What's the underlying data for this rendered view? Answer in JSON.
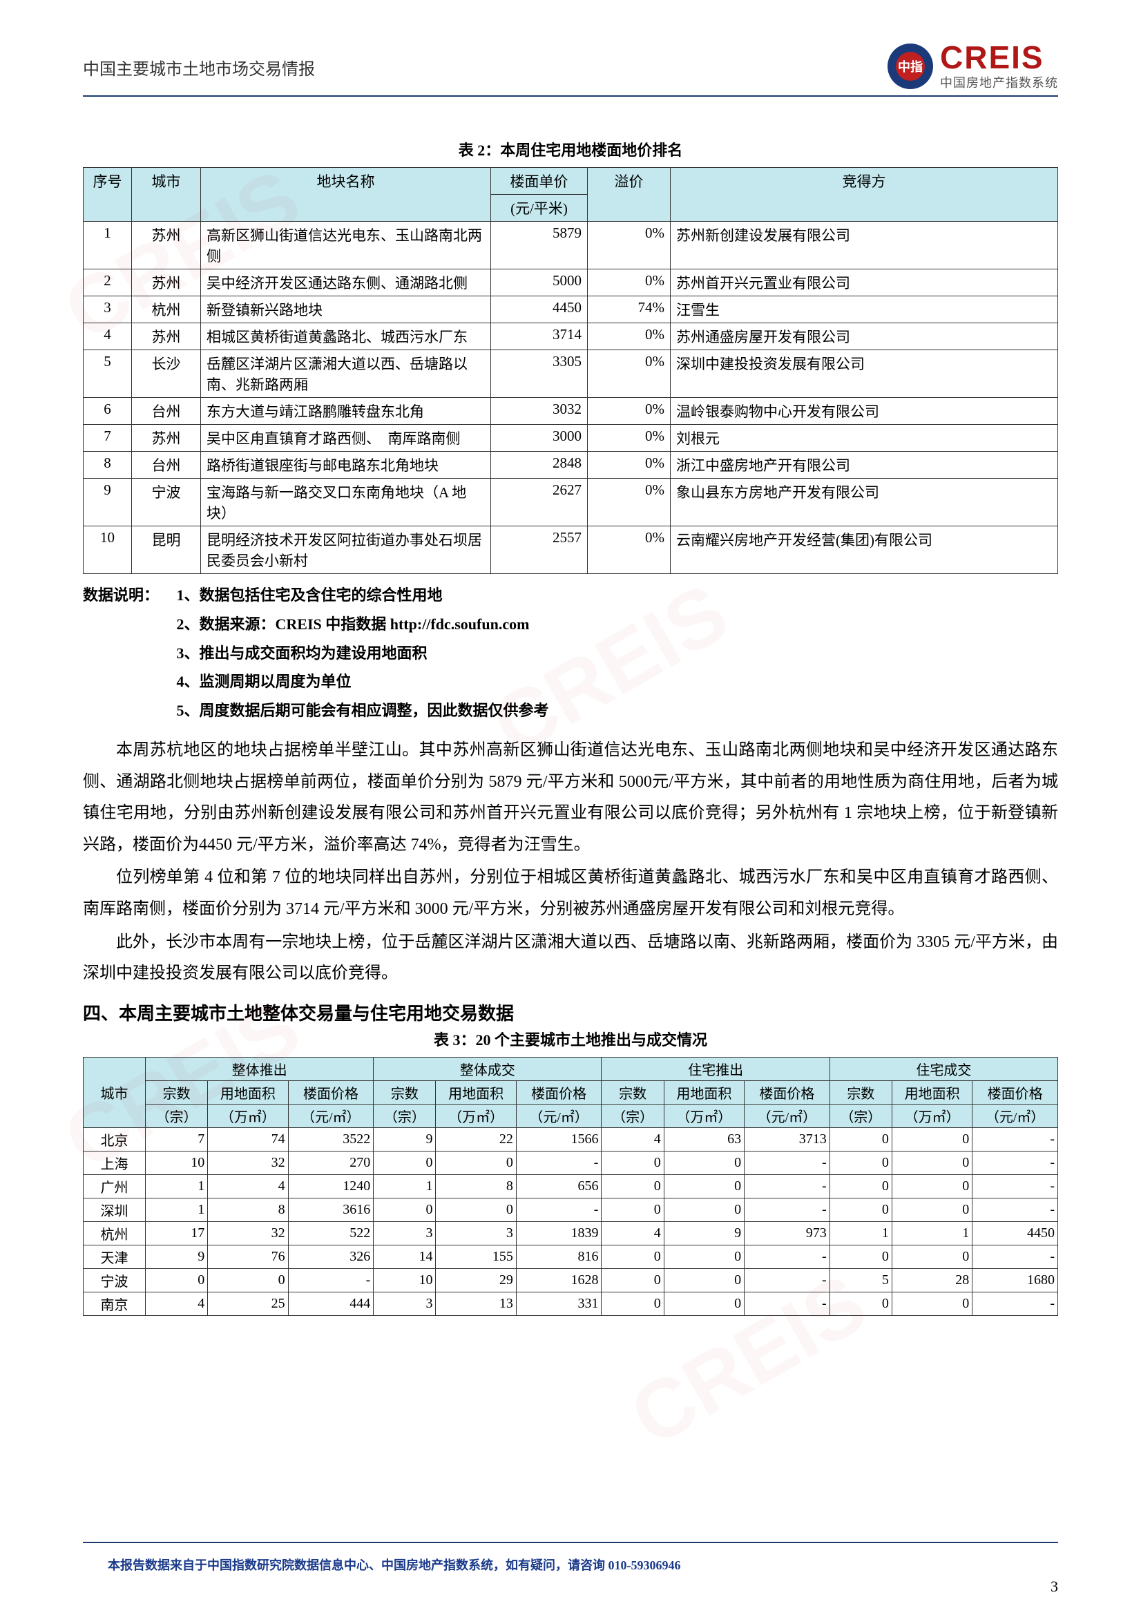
{
  "header": {
    "title": "中国主要城市土地市场交易情报",
    "logo_main": "CREIS",
    "logo_sub": "中国房地产指数系统"
  },
  "colors": {
    "header_rule": "#1a3a6e",
    "th_bg": "#c4e8ee",
    "border": "#333333",
    "logo_red": "#b01818",
    "footer_text": "#1a3a8a",
    "watermark": "rgba(180,30,30,0.04)"
  },
  "table2": {
    "caption": "表 2：本周住宅用地楼面地价排名",
    "columns": [
      "序号",
      "城市",
      "地块名称",
      "楼面单价",
      "溢价",
      "竞得方"
    ],
    "subheader_price_unit": "(元/平米)",
    "rows": [
      {
        "seq": "1",
        "city": "苏州",
        "name": "高新区狮山街道信达光电东、玉山路南北两侧",
        "price": "5879",
        "prem": "0%",
        "buyer": "苏州新创建设发展有限公司"
      },
      {
        "seq": "2",
        "city": "苏州",
        "name": "吴中经济开发区通达路东侧、通湖路北侧",
        "price": "5000",
        "prem": "0%",
        "buyer": "苏州首开兴元置业有限公司"
      },
      {
        "seq": "3",
        "city": "杭州",
        "name": "新登镇新兴路地块",
        "price": "4450",
        "prem": "74%",
        "buyer": "汪雪生"
      },
      {
        "seq": "4",
        "city": "苏州",
        "name": "相城区黄桥街道黄蠡路北、城西污水厂东",
        "price": "3714",
        "prem": "0%",
        "buyer": "苏州通盛房屋开发有限公司"
      },
      {
        "seq": "5",
        "city": "长沙",
        "name": "岳麓区洋湖片区潇湘大道以西、岳塘路以南、兆新路两厢",
        "price": "3305",
        "prem": "0%",
        "buyer": "深圳中建投投资发展有限公司"
      },
      {
        "seq": "6",
        "city": "台州",
        "name": "东方大道与靖江路鹏雕转盘东北角",
        "price": "3032",
        "prem": "0%",
        "buyer": "温岭银泰购物中心开发有限公司"
      },
      {
        "seq": "7",
        "city": "苏州",
        "name": "吴中区甪直镇育才路西侧、　南厍路南侧",
        "price": "3000",
        "prem": "0%",
        "buyer": "刘根元"
      },
      {
        "seq": "8",
        "city": "台州",
        "name": "路桥街道银座街与邮电路东北角地块",
        "price": "2848",
        "prem": "0%",
        "buyer": "浙江中盛房地产开有限公司"
      },
      {
        "seq": "9",
        "city": "宁波",
        "name": "宝海路与新一路交叉口东南角地块（A 地块）",
        "price": "2627",
        "prem": "0%",
        "buyer": "象山县东方房地产开发有限公司"
      },
      {
        "seq": "10",
        "city": "昆明",
        "name": "昆明经济技术开发区阿拉街道办事处石坝居民委员会小新村",
        "price": "2557",
        "prem": "0%",
        "buyer": "云南耀兴房地产开发经营(集团)有限公司"
      }
    ]
  },
  "notes": {
    "label": "数据说明：",
    "items": [
      "1、数据包括住宅及含住宅的综合性用地",
      "2、数据来源：CREIS 中指数据 http://fdc.soufun.com",
      "3、推出与成交面积均为建设用地面积",
      "4、监测周期以周度为单位",
      "5、周度数据后期可能会有相应调整，因此数据仅供参考"
    ]
  },
  "paragraphs": [
    "本周苏杭地区的地块占据榜单半壁江山。其中苏州高新区狮山街道信达光电东、玉山路南北两侧地块和吴中经济开发区通达路东侧、通湖路北侧地块占据榜单前两位，楼面单价分别为 5879 元/平方米和 5000元/平方米，其中前者的用地性质为商住用地，后者为城镇住宅用地，分别由苏州新创建设发展有限公司和苏州首开兴元置业有限公司以底价竞得；另外杭州有 1 宗地块上榜，位于新登镇新兴路，楼面价为4450 元/平方米，溢价率高达 74%，竞得者为汪雪生。",
    "位列榜单第 4 位和第 7 位的地块同样出自苏州，分别位于相城区黄桥街道黄蠡路北、城西污水厂东和吴中区甪直镇育才路西侧、南厍路南侧，楼面价分别为 3714 元/平方米和 3000 元/平方米，分别被苏州通盛房屋开发有限公司和刘根元竞得。",
    "此外，长沙市本周有一宗地块上榜，位于岳麓区洋湖片区潇湘大道以西、岳塘路以南、兆新路两厢，楼面价为 3305 元/平方米，由深圳中建投投资发展有限公司以底价竞得。"
  ],
  "section4_heading": "四、本周主要城市土地整体交易量与住宅用地交易数据",
  "table3": {
    "caption": "表 3：20 个主要城市土地推出与成交情况",
    "top_headers": [
      "城市",
      "整体推出",
      "整体成交",
      "住宅推出",
      "住宅成交"
    ],
    "sub_headers": [
      "宗数",
      "用地面积",
      "楼面价格",
      "宗数",
      "用地面积",
      "楼面价格",
      "宗数",
      "用地面积",
      "楼面价格",
      "宗数",
      "用地面积",
      "楼面价格"
    ],
    "unit_row": [
      "（宗）",
      "（万㎡）",
      "（元/㎡）",
      "（宗）",
      "（万㎡）",
      "（元/㎡）",
      "（宗）",
      "（万㎡）",
      "（元/㎡）",
      "（宗）",
      "（万㎡）",
      "（元/㎡）"
    ],
    "rows": [
      {
        "city": "北京",
        "v": [
          "7",
          "74",
          "3522",
          "9",
          "22",
          "1566",
          "4",
          "63",
          "3713",
          "0",
          "0",
          "-"
        ]
      },
      {
        "city": "上海",
        "v": [
          "10",
          "32",
          "270",
          "0",
          "0",
          "-",
          "0",
          "0",
          "-",
          "0",
          "0",
          "-"
        ]
      },
      {
        "city": "广州",
        "v": [
          "1",
          "4",
          "1240",
          "1",
          "8",
          "656",
          "0",
          "0",
          "-",
          "0",
          "0",
          "-"
        ]
      },
      {
        "city": "深圳",
        "v": [
          "1",
          "8",
          "3616",
          "0",
          "0",
          "-",
          "0",
          "0",
          "-",
          "0",
          "0",
          "-"
        ]
      },
      {
        "city": "杭州",
        "v": [
          "17",
          "32",
          "522",
          "3",
          "3",
          "1839",
          "4",
          "9",
          "973",
          "1",
          "1",
          "4450"
        ]
      },
      {
        "city": "天津",
        "v": [
          "9",
          "76",
          "326",
          "14",
          "155",
          "816",
          "0",
          "0",
          "-",
          "0",
          "0",
          "-"
        ]
      },
      {
        "city": "宁波",
        "v": [
          "0",
          "0",
          "-",
          "10",
          "29",
          "1628",
          "0",
          "0",
          "-",
          "5",
          "28",
          "1680"
        ]
      },
      {
        "city": "南京",
        "v": [
          "4",
          "25",
          "444",
          "3",
          "13",
          "331",
          "0",
          "0",
          "-",
          "0",
          "0",
          "-"
        ]
      }
    ]
  },
  "footer": {
    "text": "本报告数据来自于中国指数研究院数据信息中心、中国房地产指数系统，如有疑问，请咨询 010-59306946"
  },
  "page_number": "3"
}
